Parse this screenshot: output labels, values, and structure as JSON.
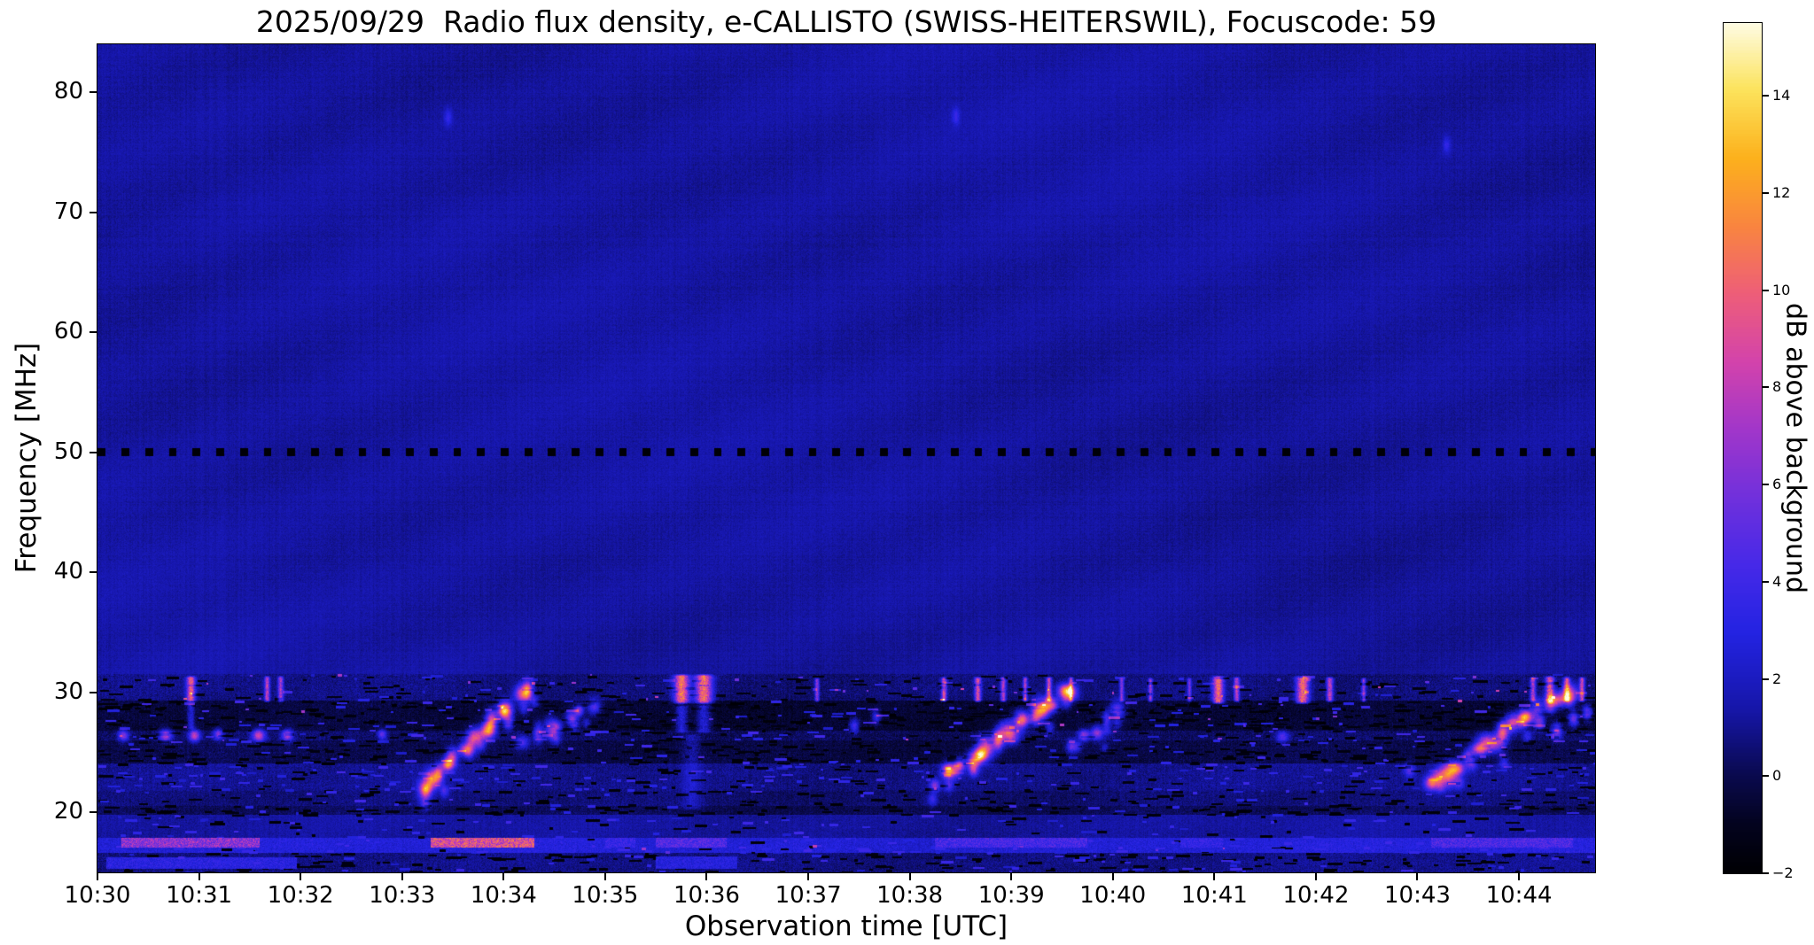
{
  "figure": {
    "background": "#ffffff"
  },
  "chart_data": {
    "type": "heatmap",
    "title": "2025/09/29  Radio flux density, e-CALLISTO (SWISS-HEITERSWIL), Focuscode: 59",
    "xlabel": "Observation time [UTC]",
    "ylabel": "Frequency [MHz]",
    "x_ticks": [
      "10:30",
      "10:31",
      "10:32",
      "10:33",
      "10:34",
      "10:35",
      "10:36",
      "10:37",
      "10:38",
      "10:39",
      "10:40",
      "10:41",
      "10:42",
      "10:43",
      "10:44"
    ],
    "x_tick_interval_s": 60,
    "x_range_s": [
      0,
      885
    ],
    "y_ticks": [
      20,
      30,
      40,
      50,
      60,
      70,
      80
    ],
    "f_range": [
      15,
      84
    ],
    "grid": false,
    "colorbar": {
      "label": "dB above background",
      "ticks": [
        -2,
        0,
        2,
        4,
        6,
        8,
        10,
        12,
        14
      ],
      "tick_labels": [
        "−2",
        "0",
        "2",
        "4",
        "6",
        "8",
        "10",
        "12",
        "14"
      ],
      "vmin": -2,
      "vmax": 15.5,
      "stops": [
        {
          "p": 0.0,
          "c": "#000004"
        },
        {
          "p": 0.055,
          "c": "#03031e"
        },
        {
          "p": 0.115,
          "c": "#0a0a50"
        },
        {
          "p": 0.19,
          "c": "#1616a8"
        },
        {
          "p": 0.28,
          "c": "#2323e2"
        },
        {
          "p": 0.36,
          "c": "#4629e8"
        },
        {
          "p": 0.44,
          "c": "#7030dc"
        },
        {
          "p": 0.52,
          "c": "#a136ca"
        },
        {
          "p": 0.6,
          "c": "#d343ab"
        },
        {
          "p": 0.68,
          "c": "#ee5e78"
        },
        {
          "p": 0.76,
          "c": "#f9853f"
        },
        {
          "p": 0.84,
          "c": "#fcb11c"
        },
        {
          "p": 0.92,
          "c": "#fce35c"
        },
        {
          "p": 1.0,
          "c": "#fefce6"
        }
      ]
    },
    "render": {
      "seed": 42,
      "row_noise": 0.1,
      "col_noise": 0.16,
      "waves": [
        {
          "a": 0.14,
          "kx": 0.021,
          "ky": 0.052,
          "ph": 0.7
        },
        {
          "a": 0.12,
          "kx": 0.0063,
          "ky": -0.011,
          "ph": 2.1
        },
        {
          "a": 0.1,
          "kx": 0.0029,
          "ky": 0.0047,
          "ph": 4.4
        }
      ],
      "bands": [
        {
          "f": [
            31.5,
            84.0
          ],
          "base": 1.25,
          "noise": 0.5
        },
        {
          "f": [
            29.3,
            31.5
          ],
          "base": 0.7,
          "noise": 0.9,
          "dark": 0.25,
          "bright": 0.1,
          "hot": 0.06
        },
        {
          "f": [
            26.8,
            29.3
          ],
          "base": -0.45,
          "noise": 0.85,
          "dark": 0.6,
          "bright": 0.18,
          "hot": 0.02
        },
        {
          "f": [
            26.0,
            26.8
          ],
          "base": 0.3,
          "noise": 0.95,
          "dark": 0.3,
          "bright": 0.25,
          "hot": 0.03
        },
        {
          "f": [
            24.1,
            26.0
          ],
          "base": -0.1,
          "noise": 0.85,
          "dark": 0.5,
          "bright": 0.15
        },
        {
          "f": [
            21.8,
            24.1
          ],
          "base": 0.95,
          "noise": 0.85,
          "dark": 0.18,
          "bright": 0.3
        },
        {
          "f": [
            20.5,
            21.8
          ],
          "base": 0.6,
          "noise": 0.8,
          "dark": 0.3,
          "bright": 0.12
        },
        {
          "f": [
            19.8,
            20.5
          ],
          "base": 0.15,
          "noise": 0.8,
          "dark": 0.6,
          "bright": 0.1
        },
        {
          "f": [
            17.9,
            19.8
          ],
          "base": 1.3,
          "noise": 0.65,
          "dark": 0.1,
          "bright": 0.15
        },
        {
          "f": [
            16.6,
            17.9
          ],
          "base": 2.7,
          "noise": 1.0,
          "dark": 0.06,
          "bright": 0.5,
          "hot": 0.02
        },
        {
          "f": [
            15.0,
            16.6
          ],
          "base": 0.85,
          "noise": 0.9,
          "dark": 0.45,
          "bright": 0.15
        }
      ],
      "dashed_line": {
        "f": [
          49.68,
          50.32
        ],
        "period_s": 14,
        "len_s": 4.6,
        "db": -1.85
      },
      "h_segments": [
        {
          "t": [
            14,
            96
          ],
          "f": [
            17.05,
            17.85
          ],
          "db": 6.5
        },
        {
          "t": [
            197,
            258
          ],
          "f": [
            17.05,
            17.85
          ],
          "db": 9.0
        },
        {
          "t": [
            300,
            318
          ],
          "f": [
            17.05,
            17.85
          ],
          "db": 3.6
        },
        {
          "t": [
            330,
            372
          ],
          "f": [
            17.05,
            17.85
          ],
          "db": 4.6
        },
        {
          "t": [
            495,
            585
          ],
          "f": [
            17.05,
            17.85
          ],
          "db": 4.2
        },
        {
          "t": [
            640,
            665
          ],
          "f": [
            17.05,
            17.85
          ],
          "db": 3.4
        },
        {
          "t": [
            788,
            872
          ],
          "f": [
            17.05,
            17.85
          ],
          "db": 4.4
        },
        {
          "t": [
            5,
            118
          ],
          "f": [
            15.3,
            16.25
          ],
          "db": 3.1
        },
        {
          "t": [
            330,
            378
          ],
          "f": [
            15.3,
            16.3
          ],
          "db": 2.9
        }
      ],
      "streaks": [
        {
          "t": 55,
          "f": [
            29.2,
            31.4
          ],
          "w": 4,
          "p": 9
        },
        {
          "t": 55,
          "f": [
            26.9,
            29.2
          ],
          "w": 3.5,
          "p": 3
        },
        {
          "t": 100,
          "f": [
            29.2,
            31.4
          ],
          "w": 2.5,
          "p": 7
        },
        {
          "t": 108,
          "f": [
            29.2,
            31.4
          ],
          "w": 2.5,
          "p": 6.5
        },
        {
          "t": 345,
          "f": [
            29.0,
            31.5
          ],
          "w": 7,
          "p": 10
        },
        {
          "t": 345,
          "f": [
            26.6,
            29.0
          ],
          "w": 6,
          "p": 3.2
        },
        {
          "t": 358,
          "f": [
            29.0,
            31.5
          ],
          "w": 8,
          "p": 10
        },
        {
          "t": 358,
          "f": [
            26.6,
            29.0
          ],
          "w": 7,
          "p": 3.2
        },
        {
          "t": 351,
          "f": [
            20.2,
            26.6
          ],
          "w": 9,
          "p": 1.6
        },
        {
          "t": 425,
          "f": [
            29.2,
            31.2
          ],
          "w": 2,
          "p": 6
        },
        {
          "t": 500,
          "f": [
            29.2,
            31.3
          ],
          "w": 2.5,
          "p": 8
        },
        {
          "t": 520,
          "f": [
            29.2,
            31.3
          ],
          "w": 3,
          "p": 8
        },
        {
          "t": 535,
          "f": [
            29.2,
            31.3
          ],
          "w": 2.5,
          "p": 7
        },
        {
          "t": 548,
          "f": [
            29.2,
            31.3
          ],
          "w": 2,
          "p": 7
        },
        {
          "t": 562,
          "f": [
            29.2,
            31.3
          ],
          "w": 2.5,
          "p": 8
        },
        {
          "t": 575,
          "f": [
            29.2,
            31.3
          ],
          "w": 2,
          "p": 6.5
        },
        {
          "t": 605,
          "f": [
            29.2,
            31.2
          ],
          "w": 2,
          "p": 5.5
        },
        {
          "t": 622,
          "f": [
            29.2,
            31.2
          ],
          "w": 2,
          "p": 6
        },
        {
          "t": 645,
          "f": [
            29.2,
            31.2
          ],
          "w": 1.8,
          "p": 5
        },
        {
          "t": 662,
          "f": [
            29.0,
            31.4
          ],
          "w": 5,
          "p": 9.5
        },
        {
          "t": 673,
          "f": [
            29.2,
            31.3
          ],
          "w": 2.5,
          "p": 7
        },
        {
          "t": 712,
          "f": [
            29.0,
            31.4
          ],
          "w": 6,
          "p": 9.5
        },
        {
          "t": 728,
          "f": [
            29.2,
            31.3
          ],
          "w": 3,
          "p": 7.5
        },
        {
          "t": 748,
          "f": [
            29.2,
            31.2
          ],
          "w": 2,
          "p": 6
        },
        {
          "t": 848,
          "f": [
            29.2,
            31.3
          ],
          "w": 2.5,
          "p": 7
        },
        {
          "t": 858,
          "f": [
            29.0,
            31.4
          ],
          "w": 4,
          "p": 8.5
        },
        {
          "t": 868,
          "f": [
            29.2,
            31.3
          ],
          "w": 3,
          "p": 8
        },
        {
          "t": 877,
          "f": [
            29.2,
            31.3
          ],
          "w": 2.5,
          "p": 7.5
        }
      ],
      "burst_groups": [
        {
          "t": [
            193,
            252
          ],
          "f": [
            21.8,
            30.3
          ],
          "n": 14,
          "p": 8.5,
          "st": 2.6,
          "sf": 0.5,
          "seed": 11
        },
        {
          "t": [
            253,
            292
          ],
          "f": [
            25.8,
            29.2
          ],
          "n": 7,
          "p": 6.5,
          "st": 2.4,
          "sf": 0.45,
          "seed": 12
        },
        {
          "t": [
            495,
            576
          ],
          "f": [
            22.6,
            30.3
          ],
          "n": 16,
          "p": 8.5,
          "st": 2.8,
          "sf": 0.5,
          "seed": 13
        },
        {
          "t": [
            576,
            602
          ],
          "f": [
            25.5,
            28.6
          ],
          "n": 5,
          "p": 6.0,
          "st": 2.4,
          "sf": 0.45,
          "seed": 14
        },
        {
          "t": [
            789,
            868
          ],
          "f": [
            22.6,
            30.0
          ],
          "n": 16,
          "p": 8.5,
          "st": 2.8,
          "sf": 0.5,
          "seed": 15
        }
      ],
      "blobs": [
        {
          "t": 15,
          "f": 26.4,
          "st": 2.2,
          "sf": 0.32,
          "p": 6
        },
        {
          "t": 40,
          "f": 26.4,
          "st": 2.6,
          "sf": 0.34,
          "p": 7.5
        },
        {
          "t": 57,
          "f": 26.4,
          "st": 2.2,
          "sf": 0.34,
          "p": 8
        },
        {
          "t": 71,
          "f": 26.5,
          "st": 1.8,
          "sf": 0.3,
          "p": 6
        },
        {
          "t": 95,
          "f": 26.4,
          "st": 2.6,
          "sf": 0.35,
          "p": 8
        },
        {
          "t": 112,
          "f": 26.4,
          "st": 2.2,
          "sf": 0.33,
          "p": 7
        },
        {
          "t": 168,
          "f": 26.5,
          "st": 1.8,
          "sf": 0.3,
          "p": 5
        },
        {
          "t": 207,
          "f": 77.9,
          "st": 1.6,
          "sf": 0.5,
          "p": 2.3
        },
        {
          "t": 507,
          "f": 78.0,
          "st": 1.6,
          "sf": 0.5,
          "p": 2.3
        },
        {
          "t": 797,
          "f": 75.6,
          "st": 1.6,
          "sf": 0.5,
          "p": 2.2
        },
        {
          "t": 447,
          "f": 27.2,
          "st": 2.0,
          "sf": 0.4,
          "p": 4.5
        },
        {
          "t": 460,
          "f": 28.0,
          "st": 1.8,
          "sf": 0.4,
          "p": 4
        },
        {
          "t": 540,
          "f": 26.2,
          "st": 3.0,
          "sf": 0.4,
          "p": 4.5
        },
        {
          "t": 700,
          "f": 26.3,
          "st": 2.6,
          "sf": 0.35,
          "p": 4.5
        },
        {
          "t": 775,
          "f": 23.5,
          "st": 2.2,
          "sf": 0.4,
          "p": 4
        },
        {
          "t": 852,
          "f": 27.5,
          "st": 2.2,
          "sf": 0.45,
          "p": 6
        },
        {
          "t": 862,
          "f": 26.8,
          "st": 2.2,
          "sf": 0.45,
          "p": 6.5
        },
        {
          "t": 872,
          "f": 27.8,
          "st": 2.2,
          "sf": 0.45,
          "p": 6
        },
        {
          "t": 880,
          "f": 28.3,
          "st": 2.0,
          "sf": 0.45,
          "p": 6
        }
      ]
    }
  }
}
